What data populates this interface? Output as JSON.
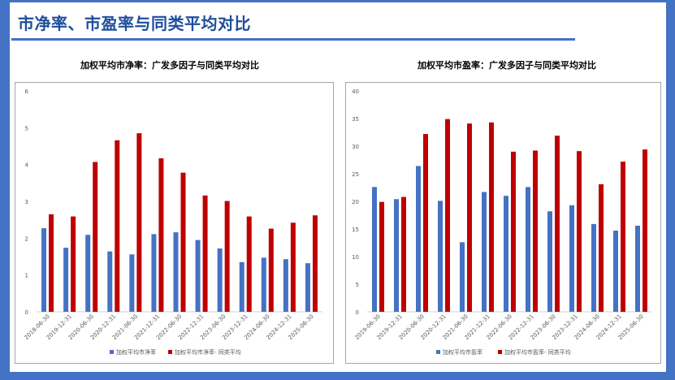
{
  "page": {
    "title": "市净率、市盈率与同类平均对比",
    "colors": {
      "frame": "#4472c4",
      "title": "#1f4e9c",
      "series_blue": "#4472c4",
      "series_red": "#c00000"
    }
  },
  "chart_data": [
    {
      "type": "bar",
      "title": "加权平均市净率：广发多因子与同类平均对比",
      "categories": [
        "2018-06-30",
        "2019-12-31",
        "2020-06-30",
        "2020-12-31",
        "2021-06-30",
        "2021-12-31",
        "2022-06-30",
        "2022-12-31",
        "2023-06-30",
        "2023-12-31",
        "2024-06-30",
        "2024-12-31",
        "2025-06-30"
      ],
      "yticks": [
        "0",
        "1",
        "2",
        "3",
        "4",
        "5",
        "6"
      ],
      "ylim": [
        0,
        6
      ],
      "grid": false,
      "legend_position": "bottom",
      "series": [
        {
          "name": "加权平均市净率",
          "color": "#4472c4",
          "values": [
            2.27,
            1.74,
            2.09,
            1.64,
            1.56,
            2.11,
            2.16,
            1.95,
            1.72,
            1.35,
            1.47,
            1.43,
            1.32
          ]
        },
        {
          "name": "加权平均市净率- 同类平均",
          "color": "#c00000",
          "values": [
            2.65,
            2.59,
            4.07,
            4.66,
            4.85,
            4.17,
            3.78,
            3.16,
            3.01,
            2.59,
            2.26,
            2.42,
            2.62
          ]
        }
      ]
    },
    {
      "type": "bar",
      "title": "加权平均市盈率：广发多因子与同类平均对比",
      "categories": [
        "2019-06-30",
        "2019-12-31",
        "2020-06-30",
        "2020-12-31",
        "2021-06-30",
        "2021-12-31",
        "2022-06-30",
        "2022-12-31",
        "2023-06-30",
        "2023-12-31",
        "2024-06-30",
        "2024-12-31",
        "2025-06-30"
      ],
      "yticks": [
        "0",
        "5",
        "10",
        "15",
        "20",
        "25",
        "30",
        "35",
        "40"
      ],
      "ylim": [
        0,
        40
      ],
      "grid": false,
      "legend_position": "bottom",
      "series": [
        {
          "name": "加权平均市盈率",
          "color": "#4472c4",
          "values": [
            22.6,
            20.4,
            26.4,
            20.1,
            12.6,
            21.7,
            21.0,
            22.6,
            18.2,
            19.3,
            15.9,
            14.7,
            15.6
          ]
        },
        {
          "name": "加权平均市盈率- 同类平均",
          "color": "#c00000",
          "values": [
            19.9,
            20.8,
            32.2,
            34.9,
            34.1,
            34.3,
            29.0,
            29.2,
            31.9,
            29.1,
            23.1,
            27.2,
            29.4
          ]
        }
      ]
    }
  ]
}
